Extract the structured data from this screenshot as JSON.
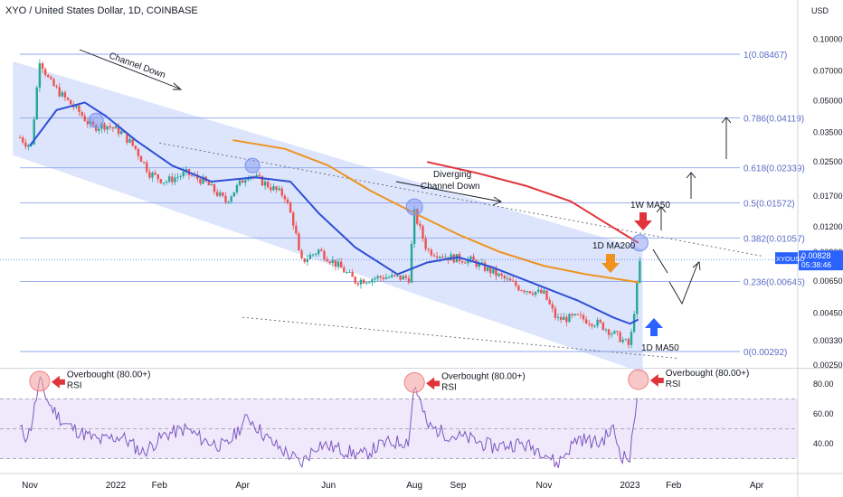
{
  "header": {
    "title": "XYO / United States Dollar, 1D, COINBASE"
  },
  "price_axis": {
    "unit": "USD",
    "ticks": [
      "0.10000",
      "0.07000",
      "0.05000",
      "0.03500",
      "0.02500",
      "0.01700",
      "0.01200",
      "0.00900",
      "0.00650",
      "0.00450",
      "0.00330",
      "0.00250"
    ]
  },
  "ticker": {
    "symbol": "XYOUSD",
    "price": "0.00828",
    "countdown": "05:38:46",
    "color": "#2962ff"
  },
  "rsi_axis": {
    "ticks": [
      "80.00",
      "60.00",
      "40.00"
    ]
  },
  "time_axis": {
    "ticks": [
      "Nov",
      "2022",
      "Feb",
      "Apr",
      "Jun",
      "Aug",
      "Sep",
      "Nov",
      "2023",
      "Feb",
      "Apr"
    ]
  },
  "fib_levels": [
    {
      "label": "1(0.08467)",
      "value": 0.08467
    },
    {
      "label": "0.786(0.04119)",
      "value": 0.04119
    },
    {
      "label": "0.618(0.02339)",
      "value": 0.02339
    },
    {
      "label": "0.5(0.01572)",
      "value": 0.01572
    },
    {
      "label": "0.382(0.01057)",
      "value": 0.01057
    },
    {
      "label": "0.236(0.00646)",
      "value": 0.00646
    },
    {
      "label": "0(0.00292)",
      "value": 0.00292
    }
  ],
  "annotations": {
    "channel_down": "Channel Down",
    "diverging_1": "Diverging",
    "diverging_2": "Channel Down",
    "ma200_1d": "1D MA200",
    "ma50_1w": "1W MA50",
    "ma50_1d": "1D MA50",
    "overbought_1": "Overbought (80.00+)",
    "overbought_2": "RSI"
  },
  "colors": {
    "channel_fill": "#d6e0fb",
    "ma50_1d": "#2f4fd6",
    "ma200_1d": "#f0921e",
    "ma50_1w": "#e0343a",
    "fib_line": "#8fa4e8",
    "rsi_line": "#7e57c2",
    "bull": "#26a69a",
    "bear": "#ef5350"
  },
  "chart_data": {
    "type": "line",
    "y_scale": "log",
    "price_close_path": [
      [
        "2021-10-25",
        0.033
      ],
      [
        "2021-10-29",
        0.031
      ],
      [
        "2021-11-02",
        0.03
      ],
      [
        "2021-11-08",
        0.08
      ],
      [
        "2021-11-15",
        0.062
      ],
      [
        "2021-11-25",
        0.052
      ],
      [
        "2021-12-06",
        0.044
      ],
      [
        "2021-12-15",
        0.037
      ],
      [
        "2021-12-25",
        0.038
      ],
      [
        "2022-01-05",
        0.035
      ],
      [
        "2022-01-15",
        0.029
      ],
      [
        "2022-01-25",
        0.022
      ],
      [
        "2022-02-05",
        0.02
      ],
      [
        "2022-02-20",
        0.022
      ],
      [
        "2022-03-05",
        0.02
      ],
      [
        "2022-03-20",
        0.016
      ],
      [
        "2022-04-05",
        0.022
      ],
      [
        "2022-04-20",
        0.019
      ],
      [
        "2022-05-01",
        0.017
      ],
      [
        "2022-05-08",
        0.012
      ],
      [
        "2022-05-12",
        0.008
      ],
      [
        "2022-05-25",
        0.0092
      ],
      [
        "2022-06-10",
        0.0075
      ],
      [
        "2022-06-20",
        0.0065
      ],
      [
        "2022-07-10",
        0.0068
      ],
      [
        "2022-07-28",
        0.0067
      ],
      [
        "2022-08-01",
        0.014
      ],
      [
        "2022-08-10",
        0.0092
      ],
      [
        "2022-08-25",
        0.0085
      ],
      [
        "2022-09-10",
        0.0082
      ],
      [
        "2022-09-25",
        0.0072
      ],
      [
        "2022-10-15",
        0.006
      ],
      [
        "2022-11-01",
        0.0056
      ],
      [
        "2022-11-10",
        0.0042
      ],
      [
        "2022-11-25",
        0.0043
      ],
      [
        "2022-12-10",
        0.004
      ],
      [
        "2022-12-25",
        0.0034
      ],
      [
        "2023-01-01",
        0.0031
      ],
      [
        "2023-01-08",
        0.008
      ]
    ],
    "ma50_1d": [
      [
        "2021-11-01",
        0.03
      ],
      [
        "2021-11-20",
        0.045
      ],
      [
        "2021-12-10",
        0.049
      ],
      [
        "2021-12-25",
        0.042
      ],
      [
        "2022-01-15",
        0.032
      ],
      [
        "2022-02-10",
        0.024
      ],
      [
        "2022-03-10",
        0.02
      ],
      [
        "2022-04-10",
        0.021
      ],
      [
        "2022-05-05",
        0.02
      ],
      [
        "2022-05-25",
        0.014
      ],
      [
        "2022-06-20",
        0.0095
      ],
      [
        "2022-07-20",
        0.007
      ],
      [
        "2022-08-10",
        0.008
      ],
      [
        "2022-09-01",
        0.0085
      ],
      [
        "2022-09-25",
        0.0076
      ],
      [
        "2022-10-25",
        0.0063
      ],
      [
        "2022-11-25",
        0.0052
      ],
      [
        "2022-12-20",
        0.0043
      ],
      [
        "2023-01-01",
        0.004
      ],
      [
        "2023-01-07",
        0.0042
      ]
    ],
    "ma200_1d": [
      [
        "2022-03-25",
        0.032
      ],
      [
        "2022-05-01",
        0.029
      ],
      [
        "2022-06-01",
        0.024
      ],
      [
        "2022-07-01",
        0.018
      ],
      [
        "2022-08-01",
        0.014
      ],
      [
        "2022-09-01",
        0.011
      ],
      [
        "2022-10-01",
        0.009
      ],
      [
        "2022-11-01",
        0.0077
      ],
      [
        "2022-12-01",
        0.007
      ],
      [
        "2023-01-07",
        0.0064
      ]
    ],
    "ma50_1w": [
      [
        "2022-08-10",
        0.025
      ],
      [
        "2022-09-15",
        0.022
      ],
      [
        "2022-10-20",
        0.019
      ],
      [
        "2022-11-20",
        0.016
      ],
      [
        "2022-12-15",
        0.0125
      ],
      [
        "2023-01-07",
        0.01
      ]
    ],
    "rsi": [
      [
        "2021-10-25",
        50
      ],
      [
        "2021-10-29",
        45
      ],
      [
        "2021-11-01",
        48
      ],
      [
        "2021-11-08",
        82
      ],
      [
        "2021-11-15",
        66
      ],
      [
        "2021-11-25",
        54
      ],
      [
        "2021-12-06",
        48
      ],
      [
        "2021-12-20",
        42
      ],
      [
        "2022-01-05",
        45
      ],
      [
        "2022-01-20",
        34
      ],
      [
        "2022-02-05",
        46
      ],
      [
        "2022-02-20",
        50
      ],
      [
        "2022-03-05",
        42
      ],
      [
        "2022-03-20",
        38
      ],
      [
        "2022-04-05",
        58
      ],
      [
        "2022-04-20",
        42
      ],
      [
        "2022-05-08",
        30
      ],
      [
        "2022-05-12",
        26
      ],
      [
        "2022-05-25",
        40
      ],
      [
        "2022-06-10",
        36
      ],
      [
        "2022-06-25",
        32
      ],
      [
        "2022-07-10",
        40
      ],
      [
        "2022-07-28",
        42
      ],
      [
        "2022-08-01",
        81
      ],
      [
        "2022-08-10",
        52
      ],
      [
        "2022-08-25",
        46
      ],
      [
        "2022-09-10",
        43
      ],
      [
        "2022-09-25",
        38
      ],
      [
        "2022-10-15",
        40
      ],
      [
        "2022-11-01",
        35
      ],
      [
        "2022-11-10",
        26
      ],
      [
        "2022-11-25",
        44
      ],
      [
        "2022-12-10",
        40
      ],
      [
        "2022-12-20",
        50
      ],
      [
        "2022-12-26",
        32
      ],
      [
        "2023-01-01",
        30
      ],
      [
        "2023-01-04",
        55
      ],
      [
        "2023-01-07",
        83
      ]
    ],
    "rsi_levels": {
      "upper": 70,
      "middle": 50,
      "lower": 30
    },
    "rsi_ylim": [
      20,
      90
    ]
  }
}
